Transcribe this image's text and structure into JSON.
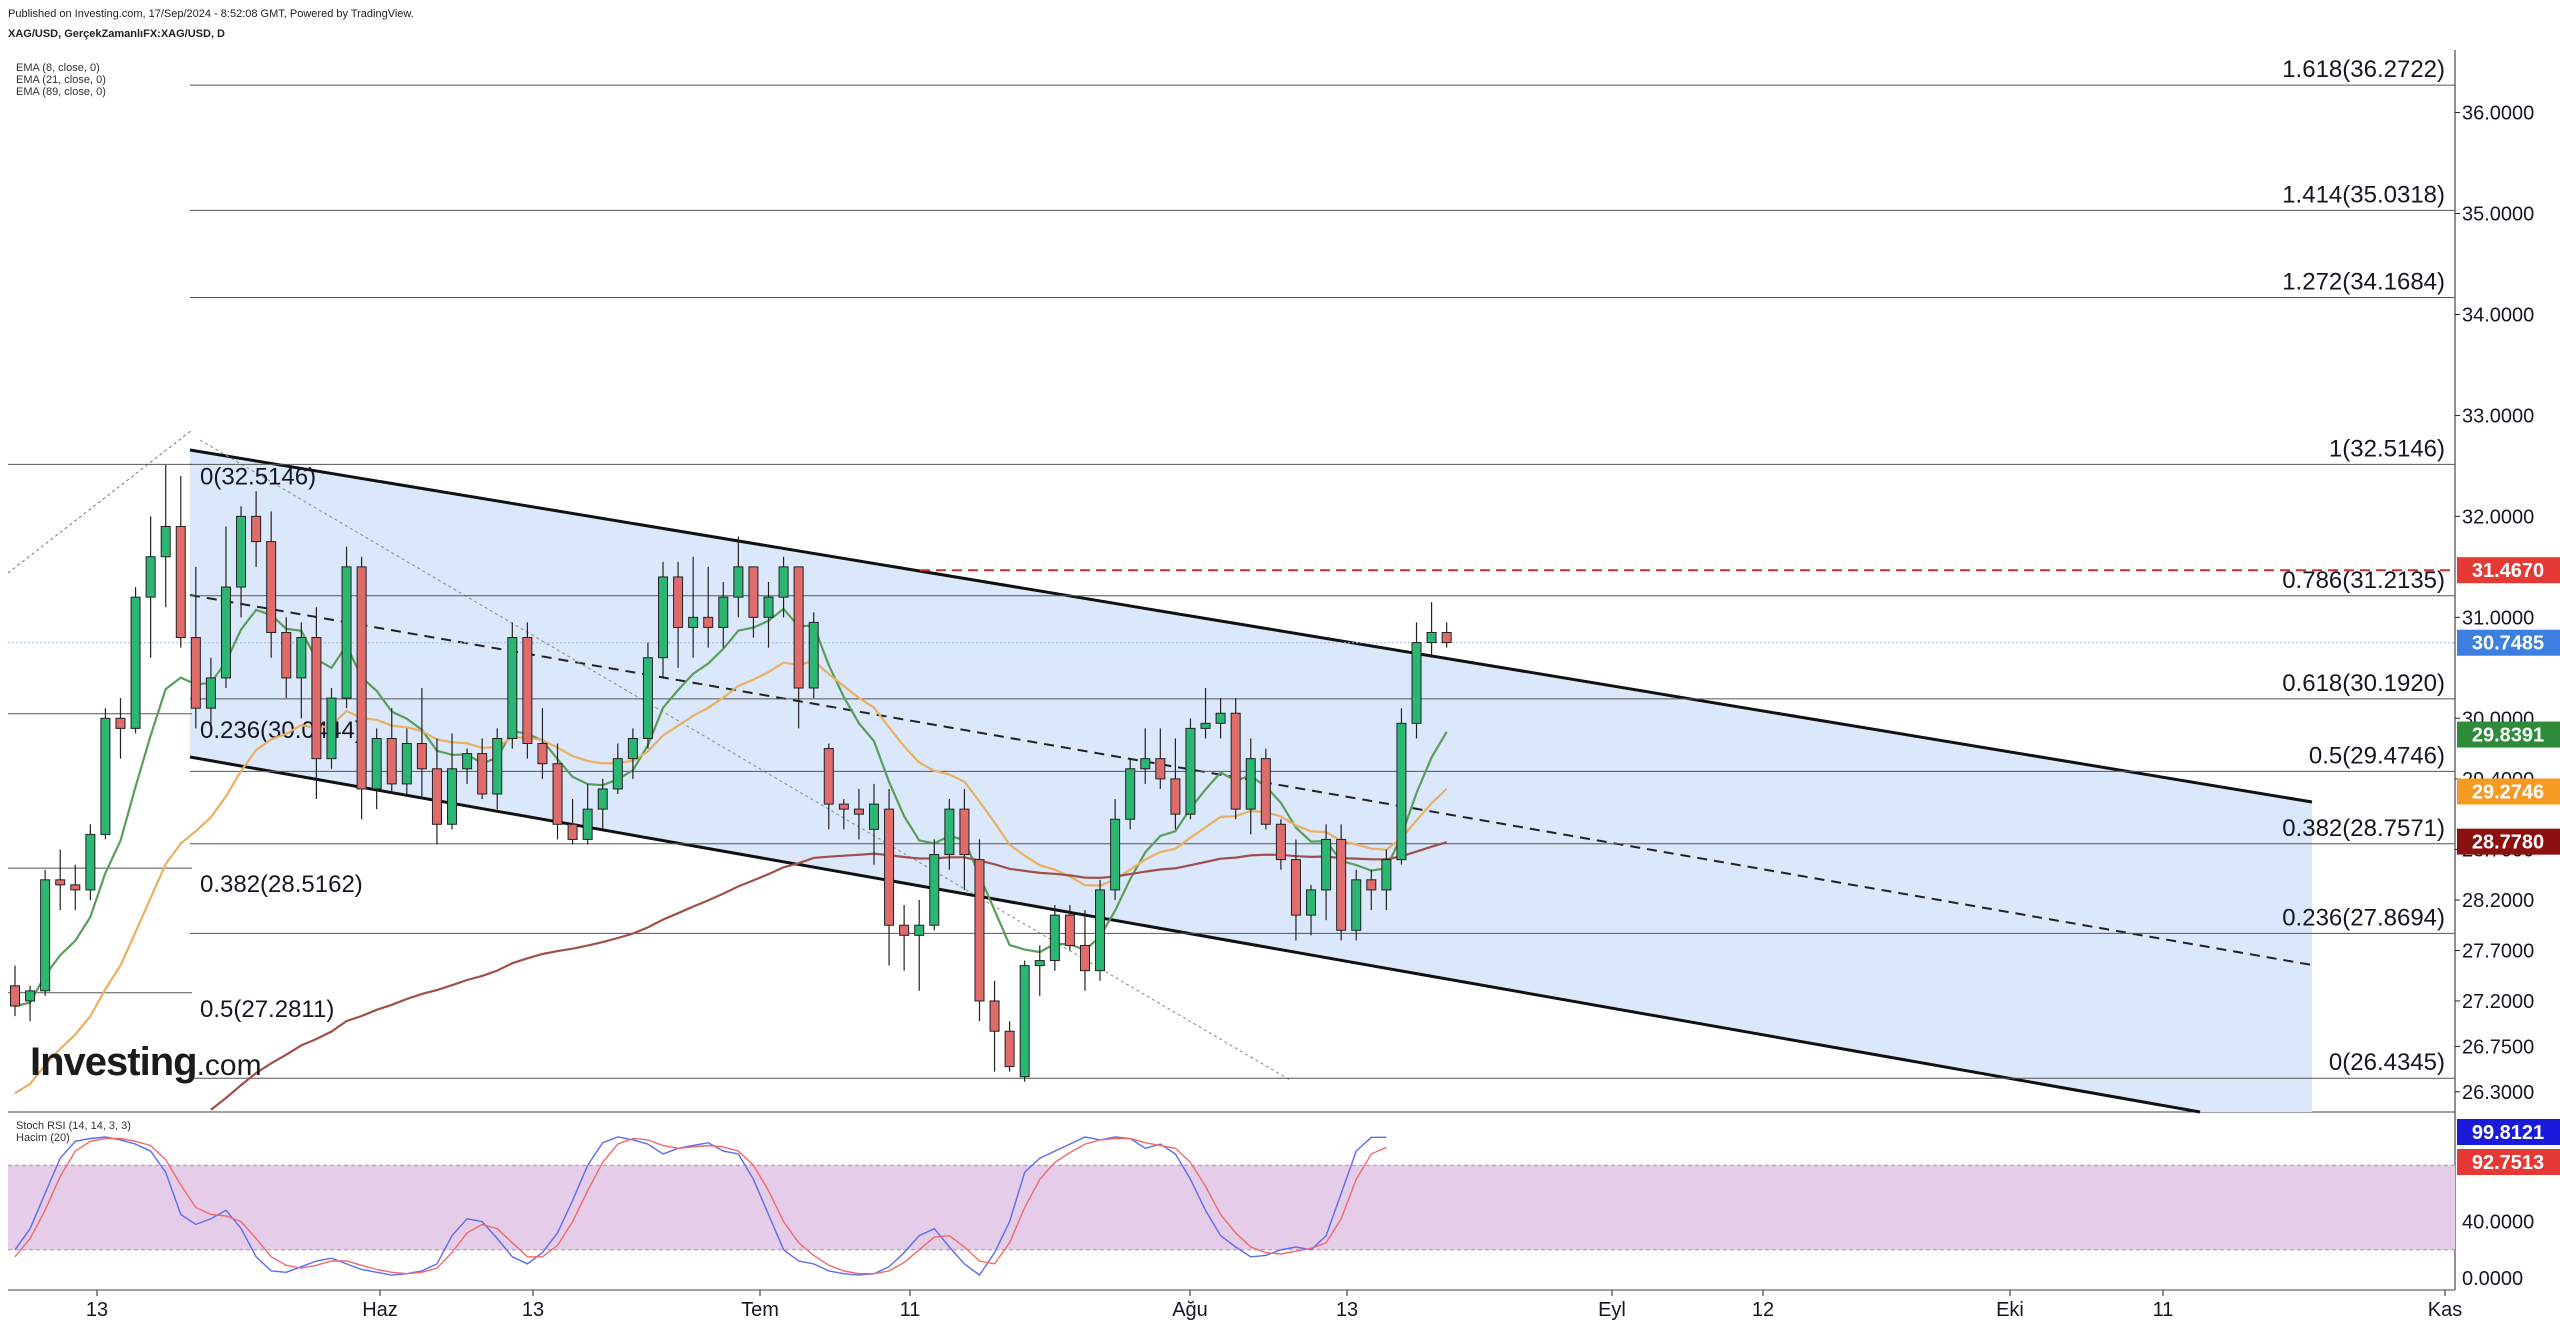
{
  "header": {
    "published": "Published on Investing.com, 17/Sep/2024 - 8:52:08 GMT, Powered by TradingView.",
    "symbol": "XAG/USD, GerçekZamanlıFX:XAG/USD, D"
  },
  "indicators_top": [
    "EMA (8, close, 0)",
    "EMA (21, close, 0)",
    "EMA (89, close, 0)"
  ],
  "indicators_bottom": [
    "Stoch RSI (14, 14, 3, 3)",
    "Hacim (20)"
  ],
  "logo": {
    "main": "Investing",
    "suffix": ".com"
  },
  "chart_data": {
    "type": "candlestick",
    "title": "XAG/USD, GerçekZamanlıFX:XAG/USD, D",
    "ylim": [
      26.1,
      36.6
    ],
    "price_ticks": [
      "36.0000",
      "35.0000",
      "34.0000",
      "33.0000",
      "32.0000",
      "31.0000",
      "30.0000",
      "29.4000",
      "28.7000",
      "28.2000",
      "27.7000",
      "27.2000",
      "26.7500",
      "26.3000"
    ],
    "x_ticks": [
      "13",
      "Haz",
      "13",
      "Tem",
      "11",
      "Ağu",
      "13",
      "Eyl",
      "12",
      "Eki",
      "11",
      "Kas"
    ],
    "fib_right": [
      {
        "label": "1.618(36.2722)",
        "value": 36.2722
      },
      {
        "label": "1.414(35.0318)",
        "value": 35.0318
      },
      {
        "label": "1.272(34.1684)",
        "value": 34.1684
      },
      {
        "label": "1(32.5146)",
        "value": 32.5146
      },
      {
        "label": "0.786(31.2135)",
        "value": 31.2135
      },
      {
        "label": "0.618(30.1920)",
        "value": 30.192
      },
      {
        "label": "0.5(29.4746)",
        "value": 29.4746
      },
      {
        "label": "0.382(28.7571)",
        "value": 28.7571
      },
      {
        "label": "0.236(27.8694)",
        "value": 27.8694
      },
      {
        "label": "0(26.4345)",
        "value": 26.4345
      }
    ],
    "fib_left": [
      {
        "label": "0(32.5146)",
        "value": 32.5146
      },
      {
        "label": "0.236(30.0444)",
        "value": 30.0444
      },
      {
        "label": "0.382(28.5162)",
        "value": 28.5162
      },
      {
        "label": "0.5(27.2811)",
        "value": 27.2811
      }
    ],
    "price_badges": [
      {
        "label": "31.4670",
        "value": 31.467,
        "color": "#e53935"
      },
      {
        "label": "30.7485",
        "value": 30.7485,
        "color": "#3d7fe0"
      },
      {
        "label": "29.8391",
        "value": 29.8391,
        "color": "#2e8b3a"
      },
      {
        "label": "29.2746",
        "value": 29.2746,
        "color": "#f59a23"
      },
      {
        "label": "28.7780",
        "value": 28.778,
        "color": "#8b1010"
      }
    ],
    "candles": [
      [
        27.35,
        27.55,
        27.05,
        27.15
      ],
      [
        27.2,
        27.35,
        27.0,
        27.3
      ],
      [
        27.3,
        28.5,
        27.25,
        28.4
      ],
      [
        28.4,
        28.7,
        28.1,
        28.35
      ],
      [
        28.35,
        28.55,
        28.1,
        28.3
      ],
      [
        28.3,
        28.95,
        28.2,
        28.85
      ],
      [
        28.85,
        30.1,
        28.8,
        30.0
      ],
      [
        30.0,
        30.2,
        29.6,
        29.9
      ],
      [
        29.9,
        31.3,
        29.85,
        31.2
      ],
      [
        31.2,
        32.0,
        30.6,
        31.6
      ],
      [
        31.6,
        32.51,
        31.1,
        31.9
      ],
      [
        31.9,
        32.4,
        30.7,
        30.8
      ],
      [
        30.8,
        31.5,
        29.9,
        30.1
      ],
      [
        30.1,
        30.6,
        29.9,
        30.4
      ],
      [
        30.4,
        31.9,
        30.3,
        31.3
      ],
      [
        31.3,
        32.1,
        31.0,
        32.0
      ],
      [
        32.0,
        32.25,
        31.5,
        31.75
      ],
      [
        31.75,
        32.05,
        30.6,
        30.85
      ],
      [
        30.85,
        31.0,
        30.2,
        30.4
      ],
      [
        30.4,
        30.95,
        30.0,
        30.8
      ],
      [
        30.8,
        31.1,
        29.2,
        29.6
      ],
      [
        29.6,
        30.3,
        29.5,
        30.2
      ],
      [
        30.2,
        31.7,
        30.1,
        31.5
      ],
      [
        31.5,
        31.6,
        29.0,
        29.3
      ],
      [
        29.3,
        29.9,
        29.1,
        29.8
      ],
      [
        29.8,
        30.1,
        29.25,
        29.35
      ],
      [
        29.35,
        29.9,
        29.25,
        29.75
      ],
      [
        29.75,
        30.3,
        29.2,
        29.5
      ],
      [
        29.5,
        29.8,
        28.75,
        28.95
      ],
      [
        28.95,
        29.85,
        28.9,
        29.5
      ],
      [
        29.5,
        29.7,
        29.35,
        29.65
      ],
      [
        29.65,
        29.8,
        29.2,
        29.25
      ],
      [
        29.25,
        29.9,
        29.1,
        29.8
      ],
      [
        29.8,
        30.95,
        29.7,
        30.8
      ],
      [
        30.8,
        30.95,
        29.6,
        29.75
      ],
      [
        29.75,
        30.1,
        29.4,
        29.55
      ],
      [
        29.55,
        29.75,
        28.8,
        28.95
      ],
      [
        28.95,
        29.2,
        28.75,
        28.8
      ],
      [
        28.8,
        29.35,
        28.75,
        29.1
      ],
      [
        29.1,
        29.4,
        28.9,
        29.3
      ],
      [
        29.3,
        29.75,
        29.25,
        29.6
      ],
      [
        29.6,
        29.9,
        29.4,
        29.8
      ],
      [
        29.8,
        30.75,
        29.7,
        30.6
      ],
      [
        30.6,
        31.55,
        30.4,
        31.4
      ],
      [
        31.4,
        31.55,
        30.5,
        30.9
      ],
      [
        30.9,
        31.6,
        30.6,
        31.0
      ],
      [
        31.0,
        31.5,
        30.7,
        30.9
      ],
      [
        30.9,
        31.35,
        30.7,
        31.2
      ],
      [
        31.2,
        31.8,
        31.0,
        31.5
      ],
      [
        31.5,
        31.5,
        30.8,
        31.0
      ],
      [
        31.0,
        31.35,
        30.7,
        31.2
      ],
      [
        31.2,
        31.6,
        31.0,
        31.5
      ],
      [
        31.5,
        31.5,
        29.9,
        30.3
      ],
      [
        30.3,
        31.05,
        30.2,
        30.95
      ],
      [
        29.7,
        29.75,
        28.9,
        29.15
      ],
      [
        29.15,
        29.2,
        28.9,
        29.1
      ],
      [
        29.1,
        29.3,
        28.8,
        29.05
      ],
      [
        28.9,
        29.35,
        28.55,
        29.15
      ],
      [
        29.1,
        29.3,
        27.55,
        27.95
      ],
      [
        27.95,
        28.15,
        27.5,
        27.85
      ],
      [
        27.85,
        28.2,
        27.3,
        27.95
      ],
      [
        27.95,
        28.8,
        27.9,
        28.65
      ],
      [
        28.65,
        29.2,
        28.5,
        29.1
      ],
      [
        29.1,
        29.3,
        28.3,
        28.65
      ],
      [
        28.6,
        28.8,
        27.0,
        27.2
      ],
      [
        27.2,
        27.4,
        26.5,
        26.9
      ],
      [
        26.9,
        27.0,
        26.5,
        26.55
      ],
      [
        26.45,
        27.6,
        26.4,
        27.55
      ],
      [
        27.55,
        27.75,
        27.25,
        27.6
      ],
      [
        27.6,
        28.15,
        27.5,
        28.05
      ],
      [
        28.05,
        28.15,
        27.7,
        27.75
      ],
      [
        27.75,
        28.1,
        27.3,
        27.5
      ],
      [
        27.5,
        28.4,
        27.4,
        28.3
      ],
      [
        28.3,
        29.2,
        28.2,
        29.0
      ],
      [
        29.0,
        29.6,
        28.9,
        29.5
      ],
      [
        29.5,
        29.9,
        29.35,
        29.6
      ],
      [
        29.6,
        29.9,
        29.3,
        29.4
      ],
      [
        29.4,
        29.8,
        28.9,
        29.05
      ],
      [
        29.05,
        30.0,
        29.0,
        29.9
      ],
      [
        29.9,
        30.3,
        29.8,
        29.95
      ],
      [
        29.95,
        30.2,
        29.8,
        30.05
      ],
      [
        30.05,
        30.2,
        29.0,
        29.1
      ],
      [
        29.1,
        29.8,
        28.85,
        29.6
      ],
      [
        29.6,
        29.7,
        28.9,
        28.95
      ],
      [
        28.95,
        29.0,
        28.5,
        28.6
      ],
      [
        28.6,
        28.8,
        27.8,
        28.05
      ],
      [
        28.05,
        28.35,
        27.85,
        28.3
      ],
      [
        28.3,
        28.95,
        28.0,
        28.8
      ],
      [
        28.8,
        28.95,
        27.8,
        27.9
      ],
      [
        27.9,
        28.5,
        27.8,
        28.4
      ],
      [
        28.4,
        28.5,
        28.1,
        28.3
      ],
      [
        28.3,
        28.7,
        28.1,
        28.6
      ],
      [
        28.6,
        30.1,
        28.55,
        29.95
      ],
      [
        29.95,
        30.95,
        29.8,
        30.75
      ],
      [
        30.75,
        31.15,
        30.6,
        30.85
      ],
      [
        30.85,
        30.95,
        30.7,
        30.75
      ]
    ],
    "stoch_rsi": {
      "ticks": [
        "40.0000",
        "0.0000"
      ],
      "labels": [
        {
          "label": "99.8121",
          "value": 99.8121,
          "color": "#1a1adb"
        },
        {
          "label": "92.7513",
          "value": 92.7513,
          "color": "#e53935"
        }
      ],
      "k": [
        20,
        35,
        60,
        85,
        97,
        99,
        100,
        98,
        95,
        90,
        75,
        45,
        38,
        42,
        48,
        35,
        15,
        5,
        4,
        8,
        12,
        14,
        10,
        6,
        4,
        2,
        3,
        5,
        10,
        30,
        42,
        40,
        28,
        15,
        10,
        18,
        32,
        55,
        80,
        96,
        100,
        98,
        95,
        88,
        92,
        94,
        96,
        90,
        88,
        70,
        45,
        20,
        12,
        10,
        5,
        3,
        2,
        3,
        8,
        18,
        30,
        35,
        22,
        10,
        2,
        18,
        40,
        75,
        85,
        90,
        95,
        100,
        98,
        100,
        99,
        92,
        95,
        88,
        70,
        48,
        30,
        22,
        15,
        16,
        20,
        22,
        20,
        30,
        60,
        90,
        99.8,
        99.8
      ],
      "d": [
        15,
        28,
        48,
        72,
        90,
        97,
        99,
        99,
        97,
        94,
        84,
        66,
        50,
        45,
        44,
        40,
        28,
        15,
        9,
        7,
        9,
        12,
        12,
        9,
        6,
        4,
        3,
        4,
        7,
        18,
        32,
        38,
        35,
        25,
        15,
        15,
        23,
        40,
        62,
        82,
        95,
        99,
        98,
        94,
        92,
        93,
        94,
        93,
        90,
        80,
        62,
        40,
        25,
        16,
        9,
        5,
        3,
        3,
        5,
        11,
        20,
        29,
        30,
        22,
        12,
        10,
        25,
        50,
        70,
        82,
        89,
        95,
        98,
        99,
        99,
        96,
        94,
        92,
        82,
        65,
        45,
        32,
        22,
        18,
        17,
        19,
        21,
        25,
        42,
        70,
        88,
        92.75
      ]
    }
  }
}
